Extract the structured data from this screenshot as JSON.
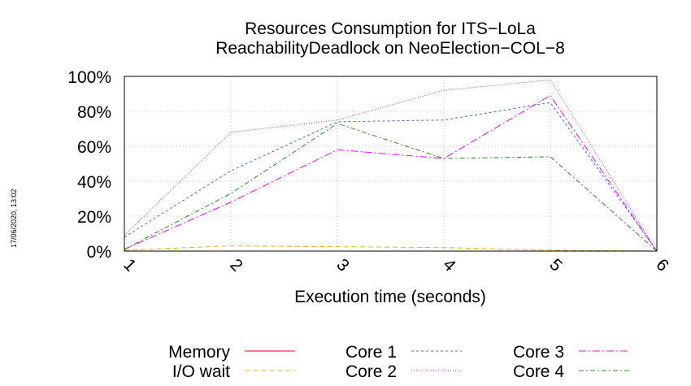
{
  "stamp": "17/06/2020, 13:02",
  "chart_data": {
    "type": "line",
    "title": [
      "Resources Consumption for ITS−LoLa",
      "ReachabilityDeadlock on NeoElection−COL−8"
    ],
    "xlabel": "Execution time (seconds)",
    "ylabel": "",
    "x": [
      1,
      2,
      3,
      4,
      5,
      6
    ],
    "x_tick_labels": [
      "1",
      "2",
      "3",
      "4",
      "5",
      "6"
    ],
    "xlim": [
      1,
      6
    ],
    "ylim": [
      0,
      100
    ],
    "y_ticks": [
      0,
      20,
      40,
      60,
      80,
      100
    ],
    "y_tick_labels": [
      "0%",
      "20%",
      "40%",
      "60%",
      "80%",
      "100%"
    ],
    "grid": true,
    "legend_position": "bottom",
    "series": [
      {
        "name": "Memory",
        "color": "#ff0000",
        "dash": "",
        "values": [
          null,
          null,
          null,
          null,
          null,
          null
        ]
      },
      {
        "name": "I/O wait",
        "color": "#ffa500",
        "dash": "6,4",
        "values": [
          0.5,
          3,
          2.5,
          2,
          0.5,
          0
        ]
      },
      {
        "name": "Core 1",
        "color": "#4169e1",
        "dash": "3,3",
        "values": [
          8,
          46,
          74,
          75,
          85,
          0
        ]
      },
      {
        "name": "Core 2",
        "color": "#9932cc",
        "dash": "1,2",
        "values": [
          9,
          68,
          75,
          92,
          98,
          0
        ]
      },
      {
        "name": "Core 3",
        "color": "#ff00ff",
        "dash": "9,3,2,3",
        "values": [
          1,
          28,
          58,
          53,
          89,
          0
        ]
      },
      {
        "name": "Core 4",
        "color": "#228b22",
        "dash": "6,3,2,3",
        "values": [
          1,
          33,
          73,
          53,
          54,
          0
        ]
      }
    ]
  }
}
